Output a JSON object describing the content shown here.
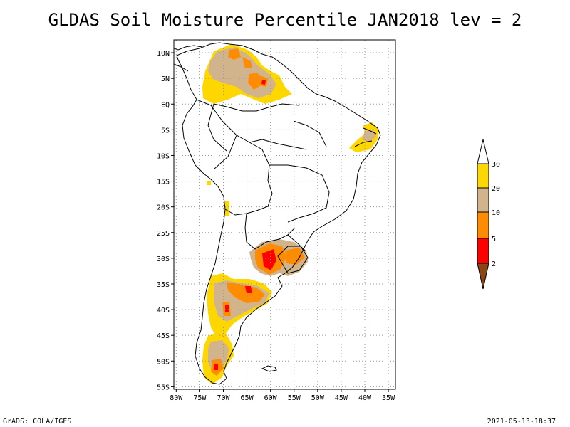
{
  "title": "GLDAS Soil Moisture Percentile JAN2018 lev = 2",
  "map": {
    "lat_ticks": [
      "10N",
      "5N",
      "EQ",
      "5S",
      "10S",
      "15S",
      "20S",
      "25S",
      "30S",
      "35S",
      "40S",
      "45S",
      "50S",
      "55S"
    ],
    "lat_values": [
      10,
      5,
      0,
      -5,
      -10,
      -15,
      -20,
      -25,
      -30,
      -35,
      -40,
      -45,
      -50,
      -55
    ],
    "lon_ticks": [
      "80W",
      "75W",
      "70W",
      "65W",
      "60W",
      "55W",
      "50W",
      "45W",
      "40W",
      "35W"
    ],
    "lon_values": [
      -80,
      -75,
      -70,
      -65,
      -60,
      -55,
      -50,
      -45,
      -40,
      -35
    ],
    "lon_range": [
      -80.5,
      -33.5
    ],
    "lat_range": [
      -55.5,
      12.5
    ],
    "grid": true
  },
  "colorbar": {
    "labels": [
      "30",
      "20",
      "10",
      "5",
      "2"
    ],
    "levels": [
      {
        "range": ">30",
        "color": "#ffffff"
      },
      {
        "range": "20-30",
        "color": "#ffd700"
      },
      {
        "range": "10-20",
        "color": "#d2b48c"
      },
      {
        "range": "5-10",
        "color": "#ff8c00"
      },
      {
        "range": "2-5",
        "color": "#ff0000"
      },
      {
        "range": "<2",
        "color": "#8b4513"
      }
    ]
  },
  "footer": {
    "left": "GrADS: COLA/IGES",
    "right": "2021-05-13-18:37"
  }
}
